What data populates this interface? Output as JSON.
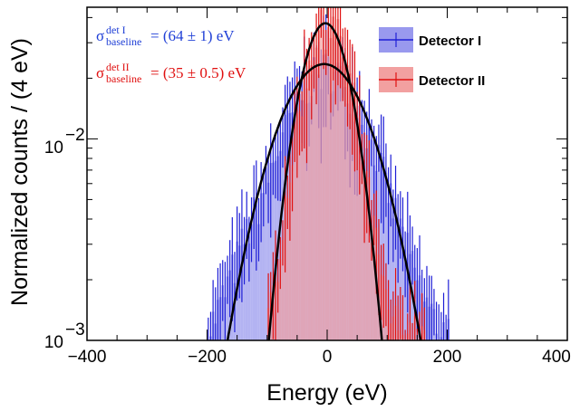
{
  "chart_data": {
    "type": "histogram",
    "xlabel": "Energy (eV)",
    "ylabel": "Normalized counts / (4 eV)",
    "xlim": [
      -400,
      400
    ],
    "ylim": [
      0.001,
      0.045
    ],
    "yscale": "log",
    "x_ticks": [
      "−400",
      "−200",
      "0",
      "200",
      "400"
    ],
    "y_ticks": [
      {
        "base": "10",
        "exp": "−3",
        "value": 0.001
      },
      {
        "base": "10",
        "exp": "−2",
        "value": 0.01
      }
    ],
    "bin_width": 4,
    "legend_position": "top-right",
    "series": [
      {
        "name": "Detector I",
        "color": "#1f1fd6",
        "fill_color": "#9999ee",
        "sigma_baseline": "(64 ± 1) eV",
        "fit": {
          "type": "gaussian",
          "mean": -5,
          "sigma": 64,
          "amplitude": 0.0235
        },
        "x": [
          -200,
          -180,
          -160,
          -140,
          -120,
          -100,
          -80,
          -60,
          -40,
          -20,
          0,
          20,
          40,
          60,
          80,
          100,
          120,
          140,
          160,
          180,
          200
        ],
        "y": [
          0.0011,
          0.0015,
          0.0022,
          0.0032,
          0.0045,
          0.0065,
          0.0095,
          0.0135,
          0.018,
          0.021,
          0.0225,
          0.021,
          0.017,
          0.0125,
          0.0085,
          0.0055,
          0.0036,
          0.0023,
          0.0016,
          0.0012,
          0.0011
        ]
      },
      {
        "name": "Detector II",
        "color": "#e01010",
        "fill_color": "#f2a0a0",
        "sigma_baseline": "(35 ± 0.5) eV",
        "fit": {
          "type": "gaussian",
          "mean": -3,
          "sigma": 35,
          "amplitude": 0.0375
        },
        "x": [
          -100,
          -90,
          -80,
          -70,
          -60,
          -50,
          -40,
          -30,
          -20,
          -10,
          0,
          10,
          20,
          30,
          40,
          50,
          60,
          70,
          80,
          90,
          100,
          120,
          140,
          160
        ],
        "y": [
          0.0012,
          0.0018,
          0.0032,
          0.0055,
          0.0085,
          0.0135,
          0.019,
          0.026,
          0.032,
          0.036,
          0.0375,
          0.035,
          0.03,
          0.024,
          0.017,
          0.0115,
          0.0075,
          0.0048,
          0.003,
          0.0019,
          0.0013,
          0.0012,
          0.0011,
          0.001
        ]
      }
    ],
    "annotations": [
      {
        "symbol": "σ",
        "sup": "det I",
        "sub": "baseline",
        "text": " = (64 ± 1) eV",
        "color": "#1f3fd6"
      },
      {
        "symbol": "σ",
        "sup": "det II",
        "sub": "baseline",
        "text": " = (35 ± 0.5) eV",
        "color": "#e01010"
      }
    ]
  }
}
